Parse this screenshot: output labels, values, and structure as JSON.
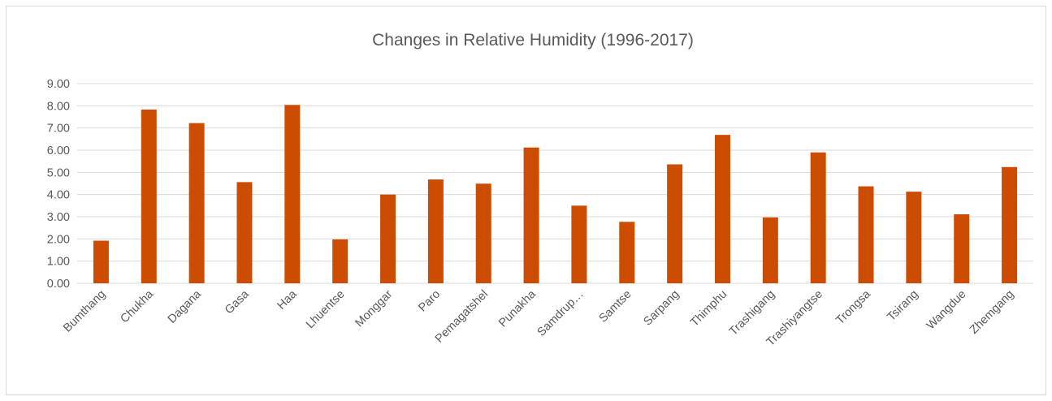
{
  "chart_data": {
    "type": "bar",
    "title": "Changes in Relative Humidity (1996-2017)",
    "xlabel": "",
    "ylabel": "",
    "categories": [
      "Bumthang",
      "Chukha",
      "Dagana",
      "Gasa",
      "Haa",
      "Lhuentse",
      "Monggar",
      "Paro",
      "Pemagatshel",
      "Punakha",
      "Samdrup…",
      "Samtse",
      "Sarpang",
      "Thimphu",
      "Trashigang",
      "Trashiyangtse",
      "Trongsa",
      "Tsirang",
      "Wangdue",
      "Zhemgang"
    ],
    "values": [
      1.92,
      7.83,
      7.22,
      4.56,
      8.04,
      1.98,
      4.0,
      4.68,
      4.49,
      6.12,
      3.5,
      2.77,
      5.36,
      6.69,
      2.97,
      5.9,
      4.37,
      4.13,
      3.11,
      5.24
    ],
    "ylim": [
      0,
      9
    ],
    "yticks": [
      "0.00",
      "1.00",
      "2.00",
      "3.00",
      "4.00",
      "5.00",
      "6.00",
      "7.00",
      "8.00",
      "9.00"
    ],
    "grid": true,
    "legend": "none",
    "bar_color": "#cc4c02"
  }
}
